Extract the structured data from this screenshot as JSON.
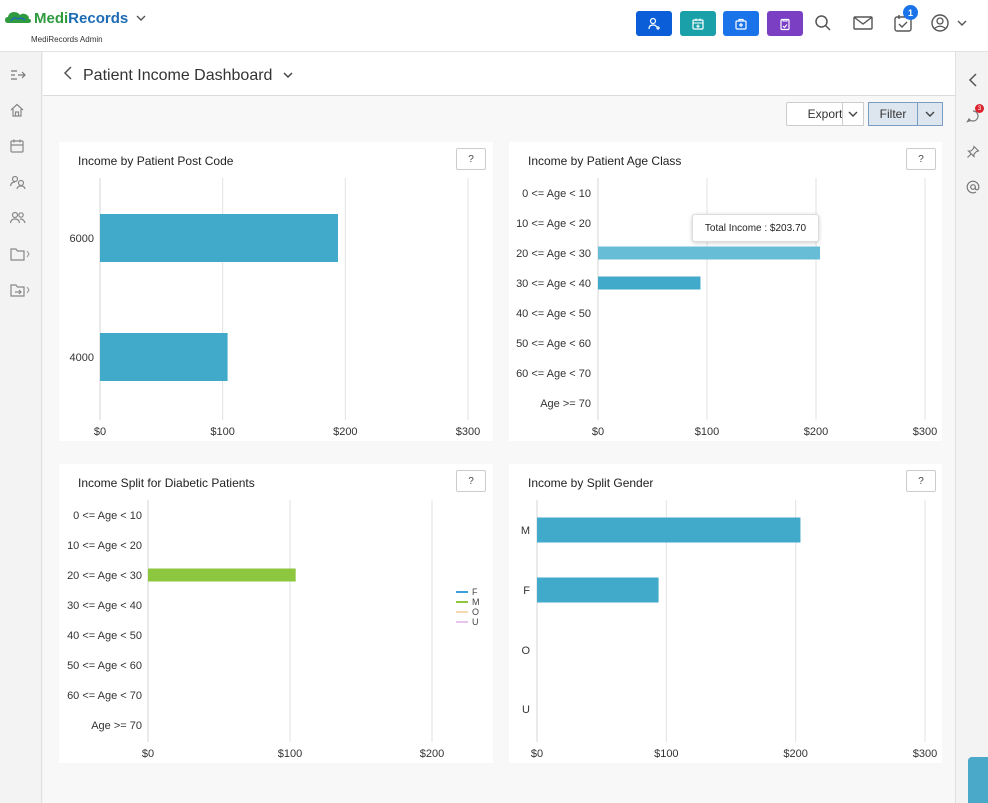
{
  "header": {
    "brand_part1": "Medi",
    "brand_part2": "Records",
    "subtitle": "MediRecords Admin",
    "notification_count": "1",
    "buttons": [
      {
        "name": "add-patient-button",
        "color": "#0b5ed7",
        "icon": "person-plus-icon"
      },
      {
        "name": "calendar-add-button",
        "color": "#1aa0a8",
        "icon": "calendar-plus-icon"
      },
      {
        "name": "medical-kit-button",
        "color": "#1a73e8",
        "icon": "medkit-icon"
      },
      {
        "name": "clipboard-button",
        "color": "#7b3fc4",
        "icon": "clipboard-icon"
      }
    ]
  },
  "page": {
    "title": "Patient Income Dashboard",
    "export_label": "Export",
    "filter_label": "Filter",
    "help_label": "?"
  },
  "right_sidebar": {
    "badge": "3"
  },
  "tooltip": "Total Income : $203.70",
  "legend": [
    {
      "label": "F",
      "color": "#3d9fdb"
    },
    {
      "label": "M",
      "color": "#8dc63f"
    },
    {
      "label": "O",
      "color": "#f6d9b0"
    },
    {
      "label": "U",
      "color": "#e8c3ee"
    }
  ],
  "chart_data": [
    {
      "type": "bar",
      "orientation": "horizontal",
      "title": "Income by Patient Post Code",
      "categories": [
        "6000",
        "4000"
      ],
      "values": [
        194,
        104
      ],
      "xlim": [
        0,
        300
      ],
      "xticks": [
        "$0",
        "$100",
        "$200",
        "$300"
      ],
      "color": "#41a9c9"
    },
    {
      "type": "bar",
      "orientation": "horizontal",
      "title": "Income by Patient Age Class",
      "categories": [
        "0 <= Age < 10",
        "10 <= Age < 20",
        "20 <= Age < 30",
        "30 <= Age < 40",
        "40 <= Age < 50",
        "50 <= Age < 60",
        "60 <= Age < 70",
        "Age >= 70"
      ],
      "values": [
        0,
        0,
        203.7,
        94,
        0,
        0,
        0,
        0
      ],
      "xlim": [
        0,
        300
      ],
      "xticks": [
        "$0",
        "$100",
        "$200",
        "$300"
      ],
      "color": "#41a9c9"
    },
    {
      "type": "bar",
      "orientation": "horizontal",
      "title": "Income Split for Diabetic Patients",
      "categories": [
        "0 <= Age < 10",
        "10 <= Age < 20",
        "20 <= Age < 30",
        "30 <= Age < 40",
        "40 <= Age < 50",
        "50 <= Age < 60",
        "60 <= Age < 70",
        "Age >= 70"
      ],
      "series": [
        {
          "name": "F",
          "values": [
            0,
            0,
            0,
            0,
            0,
            0,
            0,
            0
          ]
        },
        {
          "name": "M",
          "values": [
            0,
            0,
            104,
            0,
            0,
            0,
            0,
            0
          ]
        },
        {
          "name": "O",
          "values": [
            0,
            0,
            0,
            0,
            0,
            0,
            0,
            0
          ]
        },
        {
          "name": "U",
          "values": [
            0,
            0,
            0,
            0,
            0,
            0,
            0,
            0
          ]
        }
      ],
      "xlim": [
        0,
        200
      ],
      "xticks": [
        "$0",
        "$100",
        "$200"
      ],
      "color": "#8dc63f"
    },
    {
      "type": "bar",
      "orientation": "horizontal",
      "title": "Income by Split Gender",
      "categories": [
        "M",
        "F",
        "O",
        "U"
      ],
      "values": [
        203.7,
        94,
        0,
        0
      ],
      "xlim": [
        0,
        300
      ],
      "xticks": [
        "$0",
        "$100",
        "$200",
        "$300"
      ],
      "color": "#41a9c9"
    }
  ]
}
